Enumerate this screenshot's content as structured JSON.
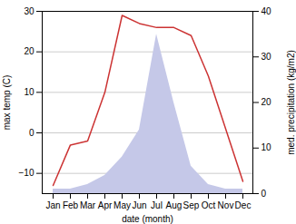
{
  "chart_data": {
    "type": "line",
    "categories": [
      "Jan",
      "Feb",
      "Mar",
      "Apr",
      "May",
      "Jun",
      "Jul",
      "Aug",
      "Sep",
      "Oct",
      "Nov",
      "Dec"
    ],
    "xlabel": "date (month)",
    "ylabel": "max temp (C)",
    "y2label": "med. precipitation (kg/m2)",
    "series": [
      {
        "type": "area",
        "axis": "y2",
        "color": "#c5c8e8",
        "values": [
          1,
          1,
          2,
          4,
          8,
          14,
          35,
          20,
          6,
          2,
          1,
          1
        ]
      },
      {
        "type": "line",
        "color": "#cc3333",
        "values": [
          -13,
          -3,
          -2,
          10,
          29,
          27,
          26,
          26,
          24,
          14,
          1,
          -12
        ]
      }
    ],
    "ylim": [
      -15,
      30
    ],
    "yticks": [
      -10,
      0,
      10,
      20,
      30
    ],
    "y2lim": [
      0,
      40
    ],
    "y2ticks": [
      0,
      10,
      20,
      30,
      40
    ],
    "grid": true
  }
}
